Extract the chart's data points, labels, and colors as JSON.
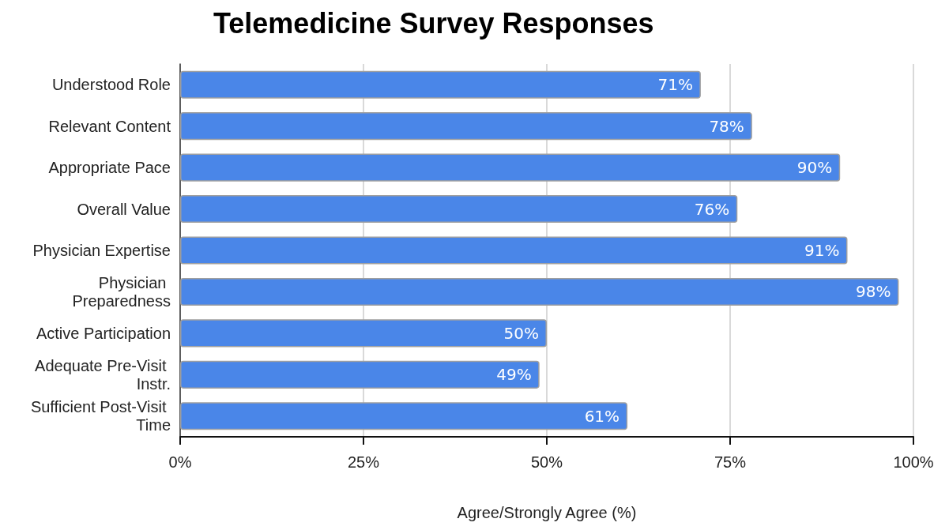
{
  "chart_data": {
    "type": "bar",
    "orientation": "horizontal",
    "title": "Telemedicine Survey Responses",
    "xlabel": "Agree/Strongly Agree (%)",
    "categories": [
      "Understood Role",
      "Relevant Content",
      "Appropriate Pace",
      "Overall Value",
      "Physician Expertise",
      "Physician Preparedness",
      "Active Participation",
      "Adequate Pre-Visit Instr.",
      "Sufficient Post-Visit Time"
    ],
    "values": [
      71,
      78,
      90,
      76,
      91,
      98,
      50,
      49,
      61
    ],
    "color": "#4a86e8",
    "value_labels": [
      "71%",
      "78%",
      "90%",
      "76%",
      "91%",
      "98%",
      "50%",
      "49%",
      "61%"
    ],
    "xlim": [
      0,
      100
    ],
    "xticks": [
      {
        "value": 0,
        "label": "0%"
      },
      {
        "value": 25,
        "label": "25%"
      },
      {
        "value": 50,
        "label": "50%"
      },
      {
        "value": 75,
        "label": "75%"
      },
      {
        "value": 100,
        "label": "100%"
      }
    ],
    "grid": "x"
  }
}
